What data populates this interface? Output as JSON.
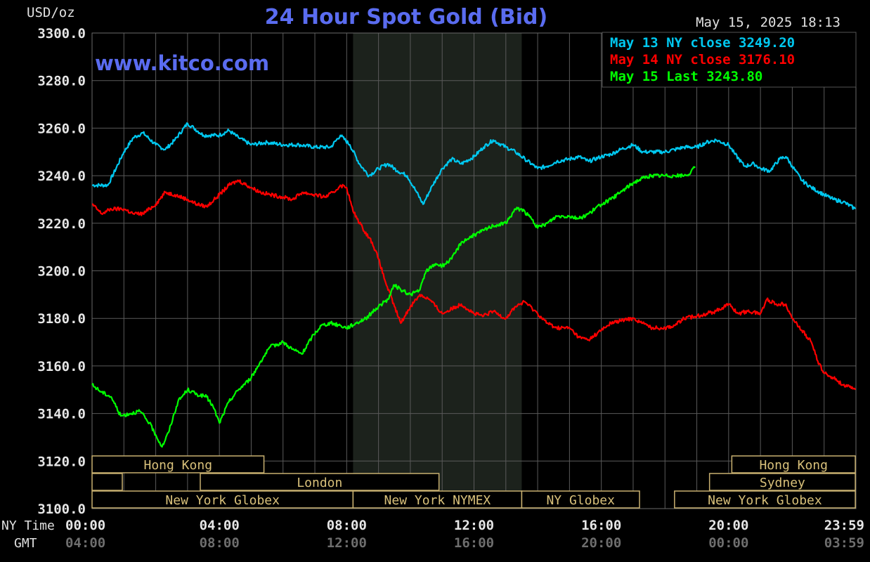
{
  "chart_data": {
    "type": "line",
    "title": "24 Hour Spot Gold (Bid)",
    "unit_label": "USD/oz",
    "timestamp": "May 15, 2025 18:13",
    "watermark": "www.kitco.com",
    "ylim": [
      3100,
      3300
    ],
    "yticks": [
      "3300.0",
      "3280.0",
      "3260.0",
      "3240.0",
      "3220.0",
      "3200.0",
      "3180.0",
      "3160.0",
      "3140.0",
      "3120.0",
      "3100.0"
    ],
    "xlim": [
      0,
      24
    ],
    "ny_time_label": "NY Time",
    "gmt_label": "GMT",
    "xticks_ny": [
      {
        "h": 0,
        "label": "00:00"
      },
      {
        "h": 4,
        "label": "04:00"
      },
      {
        "h": 8,
        "label": "08:00"
      },
      {
        "h": 12,
        "label": "12:00"
      },
      {
        "h": 16,
        "label": "16:00"
      },
      {
        "h": 20,
        "label": "20:00"
      },
      {
        "h": 23.98,
        "label": "23:59"
      }
    ],
    "xticks_gmt": [
      {
        "h": 0,
        "label": "04:00"
      },
      {
        "h": 4,
        "label": "08:00"
      },
      {
        "h": 8,
        "label": "12:00"
      },
      {
        "h": 12,
        "label": "16:00"
      },
      {
        "h": 16,
        "label": "20:00"
      },
      {
        "h": 20,
        "label": "00:00"
      },
      {
        "h": 23.98,
        "label": "03:59"
      }
    ],
    "shaded_range": [
      8.2,
      13.5
    ],
    "legend_position": "top-right",
    "series": [
      {
        "legend": "May 13 NY close 3249.20",
        "color": "#00c8f0",
        "points": [
          [
            0,
            3236
          ],
          [
            0.5,
            3236
          ],
          [
            1,
            3250
          ],
          [
            1.3,
            3256
          ],
          [
            1.6,
            3258
          ],
          [
            2,
            3253
          ],
          [
            2.3,
            3251
          ],
          [
            2.6,
            3255
          ],
          [
            3,
            3262
          ],
          [
            3.2,
            3260
          ],
          [
            3.5,
            3257
          ],
          [
            4,
            3257
          ],
          [
            4.3,
            3259
          ],
          [
            4.6,
            3256
          ],
          [
            5,
            3253
          ],
          [
            5.5,
            3254
          ],
          [
            6,
            3253
          ],
          [
            6.5,
            3253
          ],
          [
            7,
            3252
          ],
          [
            7.5,
            3252
          ],
          [
            7.8,
            3257
          ],
          [
            8.1,
            3253
          ],
          [
            8.4,
            3245
          ],
          [
            8.7,
            3240
          ],
          [
            9,
            3243
          ],
          [
            9.3,
            3245
          ],
          [
            9.6,
            3242
          ],
          [
            9.9,
            3240
          ],
          [
            10.2,
            3233
          ],
          [
            10.4,
            3228
          ],
          [
            10.7,
            3236
          ],
          [
            11,
            3243
          ],
          [
            11.3,
            3247
          ],
          [
            11.6,
            3245
          ],
          [
            12,
            3248
          ],
          [
            12.3,
            3252
          ],
          [
            12.6,
            3255
          ],
          [
            13,
            3252
          ],
          [
            13.3,
            3250
          ],
          [
            13.6,
            3247
          ],
          [
            14,
            3243
          ],
          [
            14.3,
            3244
          ],
          [
            14.6,
            3246
          ],
          [
            15,
            3247
          ],
          [
            15.3,
            3248
          ],
          [
            15.6,
            3246
          ],
          [
            16,
            3248
          ],
          [
            16.3,
            3249
          ],
          [
            16.6,
            3251
          ],
          [
            17,
            3253
          ],
          [
            17.3,
            3250
          ],
          [
            17.6,
            3250
          ],
          [
            18,
            3250
          ],
          [
            18.3,
            3251
          ],
          [
            18.6,
            3252
          ],
          [
            19,
            3252
          ],
          [
            19.3,
            3254
          ],
          [
            19.6,
            3255
          ],
          [
            20,
            3253
          ],
          [
            20.2,
            3249
          ],
          [
            20.5,
            3244
          ],
          [
            20.8,
            3245
          ],
          [
            21,
            3243
          ],
          [
            21.3,
            3242
          ],
          [
            21.6,
            3247
          ],
          [
            21.8,
            3248
          ],
          [
            22,
            3244
          ],
          [
            22.3,
            3238
          ],
          [
            22.6,
            3235
          ],
          [
            23,
            3232
          ],
          [
            23.3,
            3230
          ],
          [
            23.6,
            3229
          ],
          [
            23.98,
            3226
          ]
        ]
      },
      {
        "legend": "May 14 NY close 3176.10",
        "color": "#ff0000",
        "points": [
          [
            0,
            3228
          ],
          [
            0.3,
            3224
          ],
          [
            0.6,
            3226
          ],
          [
            1,
            3226
          ],
          [
            1.3,
            3224
          ],
          [
            1.6,
            3224
          ],
          [
            2,
            3228
          ],
          [
            2.3,
            3233
          ],
          [
            2.6,
            3232
          ],
          [
            3,
            3230
          ],
          [
            3.3,
            3228
          ],
          [
            3.6,
            3227
          ],
          [
            4,
            3232
          ],
          [
            4.3,
            3236
          ],
          [
            4.6,
            3238
          ],
          [
            5,
            3235
          ],
          [
            5.3,
            3233
          ],
          [
            5.6,
            3232
          ],
          [
            6,
            3231
          ],
          [
            6.3,
            3230
          ],
          [
            6.6,
            3233
          ],
          [
            7,
            3232
          ],
          [
            7.3,
            3231
          ],
          [
            7.6,
            3233
          ],
          [
            7.8,
            3236
          ],
          [
            8,
            3235
          ],
          [
            8.2,
            3225
          ],
          [
            8.5,
            3218
          ],
          [
            8.8,
            3212
          ],
          [
            9,
            3205
          ],
          [
            9.2,
            3196
          ],
          [
            9.5,
            3185
          ],
          [
            9.7,
            3178
          ],
          [
            10,
            3185
          ],
          [
            10.3,
            3190
          ],
          [
            10.6,
            3188
          ],
          [
            11,
            3182
          ],
          [
            11.3,
            3184
          ],
          [
            11.6,
            3186
          ],
          [
            12,
            3182
          ],
          [
            12.3,
            3181
          ],
          [
            12.6,
            3183
          ],
          [
            13,
            3180
          ],
          [
            13.3,
            3185
          ],
          [
            13.6,
            3187
          ],
          [
            14,
            3182
          ],
          [
            14.3,
            3178
          ],
          [
            14.6,
            3176
          ],
          [
            15,
            3176
          ],
          [
            15.3,
            3172
          ],
          [
            15.6,
            3171
          ],
          [
            16,
            3175
          ],
          [
            16.3,
            3178
          ],
          [
            16.6,
            3179
          ],
          [
            17,
            3180
          ],
          [
            17.3,
            3178
          ],
          [
            17.6,
            3176
          ],
          [
            18,
            3176
          ],
          [
            18.3,
            3177
          ],
          [
            18.6,
            3180
          ],
          [
            19,
            3181
          ],
          [
            19.3,
            3182
          ],
          [
            19.6,
            3183
          ],
          [
            20,
            3186
          ],
          [
            20.3,
            3182
          ],
          [
            20.6,
            3183
          ],
          [
            21,
            3182
          ],
          [
            21.2,
            3188
          ],
          [
            21.5,
            3186
          ],
          [
            21.8,
            3186
          ],
          [
            22,
            3180
          ],
          [
            22.3,
            3175
          ],
          [
            22.6,
            3170
          ],
          [
            22.8,
            3162
          ],
          [
            23,
            3157
          ],
          [
            23.3,
            3155
          ],
          [
            23.6,
            3152
          ],
          [
            23.98,
            3150
          ]
        ]
      },
      {
        "legend": "May 15 Last 3243.80",
        "color": "#00ff00",
        "points": [
          [
            0,
            3152
          ],
          [
            0.3,
            3149
          ],
          [
            0.6,
            3147
          ],
          [
            0.9,
            3139
          ],
          [
            1.2,
            3140
          ],
          [
            1.5,
            3141
          ],
          [
            1.8,
            3136
          ],
          [
            2,
            3131
          ],
          [
            2.2,
            3126
          ],
          [
            2.4,
            3132
          ],
          [
            2.7,
            3145
          ],
          [
            3,
            3150
          ],
          [
            3.3,
            3148
          ],
          [
            3.6,
            3147
          ],
          [
            3.8,
            3143
          ],
          [
            4,
            3136
          ],
          [
            4.3,
            3145
          ],
          [
            4.6,
            3150
          ],
          [
            5,
            3155
          ],
          [
            5.3,
            3162
          ],
          [
            5.6,
            3168
          ],
          [
            6,
            3170
          ],
          [
            6.3,
            3167
          ],
          [
            6.6,
            3165
          ],
          [
            6.9,
            3172
          ],
          [
            7.2,
            3177
          ],
          [
            7.5,
            3178
          ],
          [
            7.8,
            3177
          ],
          [
            8,
            3176
          ],
          [
            8.3,
            3178
          ],
          [
            8.6,
            3180
          ],
          [
            9,
            3185
          ],
          [
            9.3,
            3188
          ],
          [
            9.5,
            3194
          ],
          [
            9.7,
            3192
          ],
          [
            10,
            3190
          ],
          [
            10.3,
            3192
          ],
          [
            10.5,
            3200
          ],
          [
            10.8,
            3203
          ],
          [
            11,
            3202
          ],
          [
            11.3,
            3205
          ],
          [
            11.6,
            3212
          ],
          [
            12,
            3215
          ],
          [
            12.3,
            3217
          ],
          [
            12.6,
            3219
          ],
          [
            13,
            3220
          ],
          [
            13.3,
            3226
          ],
          [
            13.5,
            3226
          ],
          [
            13.8,
            3222
          ],
          [
            14,
            3218
          ],
          [
            14.3,
            3220
          ],
          [
            14.6,
            3223
          ],
          [
            15,
            3223
          ],
          [
            15.3,
            3222
          ],
          [
            15.6,
            3224
          ],
          [
            16,
            3228
          ],
          [
            16.3,
            3230
          ],
          [
            16.6,
            3233
          ],
          [
            17,
            3237
          ],
          [
            17.3,
            3239
          ],
          [
            17.6,
            3240
          ],
          [
            18,
            3240
          ],
          [
            18.3,
            3240
          ],
          [
            18.6,
            3240
          ],
          [
            18.8,
            3241
          ],
          [
            18.95,
            3243.8
          ]
        ]
      }
    ],
    "sessions": {
      "row1": [
        {
          "label": "Hong Kong",
          "start": 0,
          "end": 5.4
        },
        {
          "label": "Hong Kong",
          "start": 20.1,
          "end": 23.98
        }
      ],
      "row2": [
        {
          "label": "",
          "start": 0,
          "end": 0.95
        },
        {
          "label": "London",
          "start": 3.4,
          "end": 10.9
        },
        {
          "label": "Sydney",
          "start": 19.4,
          "end": 23.98
        }
      ],
      "row3": [
        {
          "label": "New York Globex",
          "start": 0,
          "end": 8.2
        },
        {
          "label": "New York NYMEX",
          "start": 8.2,
          "end": 13.5
        },
        {
          "label": "NY Globex",
          "start": 13.5,
          "end": 17.2
        },
        {
          "label": "New York Globex",
          "start": 18.3,
          "end": 23.98
        }
      ]
    }
  }
}
